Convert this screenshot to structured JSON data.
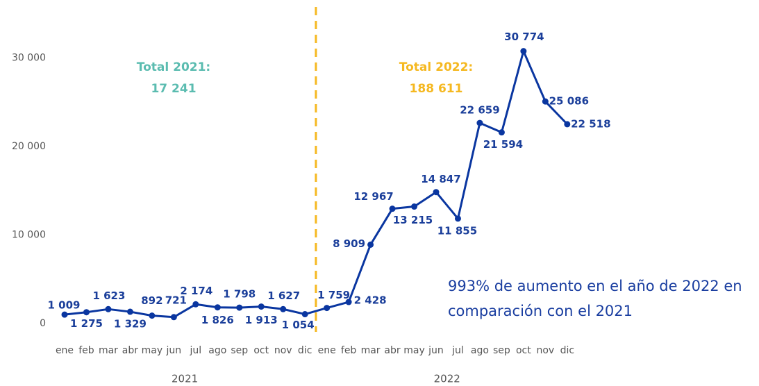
{
  "chart_data": {
    "type": "line",
    "categories": [
      "ene",
      "feb",
      "mar",
      "abr",
      "may",
      "jun",
      "jul",
      "ago",
      "sep",
      "oct",
      "nov",
      "dic",
      "ene",
      "feb",
      "mar",
      "abr",
      "may",
      "jun",
      "jul",
      "ago",
      "sep",
      "oct",
      "nov",
      "dic"
    ],
    "groups": [
      "2021",
      "2022"
    ],
    "series": [
      {
        "color": "#0a36a0",
        "values": [
          1009,
          1275,
          1623,
          1329,
          892,
          721,
          2174,
          1826,
          1798,
          1913,
          1627,
          1054,
          1759,
          2428,
          8909,
          12967,
          13215,
          14847,
          11855,
          22659,
          21594,
          30774,
          25086,
          22518
        ],
        "value_labels": [
          "1 009",
          "1 275",
          "1 623",
          "1 329",
          "892",
          "721",
          "2 174",
          "1 826",
          "1 798",
          "1 913",
          "1 627",
          "1 054",
          "1 759",
          "2 428",
          "8 909",
          "12 967",
          "13 215",
          "14 847",
          "11 855",
          "22 659",
          "21 594",
          "30 774",
          "25 086",
          "22 518"
        ]
      }
    ],
    "ylim": [
      0,
      35000
    ],
    "yticks": [
      0,
      {
        "value": 10000,
        "label": "10 000"
      },
      {
        "value": 20000,
        "label": "20 000"
      },
      {
        "value": 30000,
        "label": "30 000"
      }
    ],
    "annotations": [
      {
        "text": "Total 2021:",
        "color": "#5bbcb0"
      },
      {
        "text": "17 241",
        "color": "#5bbcb0"
      },
      {
        "text": "Total 2022:",
        "color": "#f5b820"
      },
      {
        "text": "188 611",
        "color": "#f5b820"
      },
      {
        "text": "993% de aumento en el año de 2022 en",
        "color": "#1a3ea0"
      },
      {
        "text": "comparación con el 2021",
        "color": "#1a3ea0"
      }
    ],
    "divider_color": "#f5b820"
  }
}
